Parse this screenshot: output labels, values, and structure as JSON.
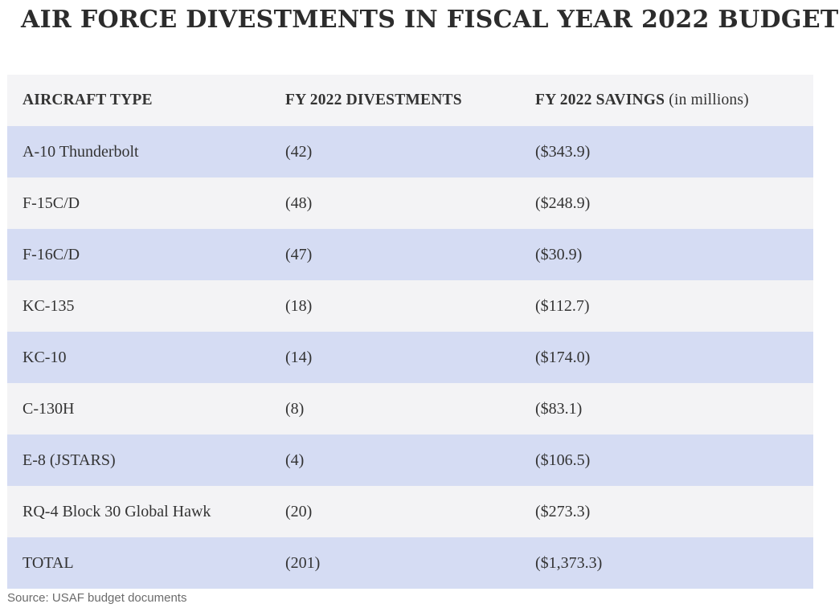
{
  "title": "AIR FORCE DIVESTMENTS IN FISCAL YEAR 2022 BUDGET",
  "table": {
    "headers": {
      "aircraft": "AIRCRAFT TYPE",
      "divestments": "FY 2022 DIVESTMENTS",
      "savings": "FY 2022 SAVINGS",
      "savings_unit": "(in millions)"
    },
    "rows": [
      {
        "aircraft": "A-10 Thunderbolt",
        "divestments": "(42)",
        "savings": "($343.9)"
      },
      {
        "aircraft": "F-15C/D",
        "divestments": "(48)",
        "savings": "($248.9)"
      },
      {
        "aircraft": "F-16C/D",
        "divestments": "(47)",
        "savings": "($30.9)"
      },
      {
        "aircraft": "KC-135",
        "divestments": "(18)",
        "savings": "($112.7)"
      },
      {
        "aircraft": "KC-10",
        "divestments": "(14)",
        "savings": "($174.0)"
      },
      {
        "aircraft": "C-130H",
        "divestments": "(8)",
        "savings": "($83.1)"
      },
      {
        "aircraft": "E-8 (JSTARS)",
        "divestments": "(4)",
        "savings": "($106.5)"
      },
      {
        "aircraft": "RQ-4 Block 30 Global Hawk",
        "divestments": "(20)",
        "savings": "($273.3)"
      },
      {
        "aircraft": "TOTAL",
        "divestments": "(201)",
        "savings": "($1,373.3)"
      }
    ]
  },
  "source": "Source: USAF budget documents",
  "colors": {
    "header_bg": "#f4f4f6",
    "row_shaded": "#d5dcf3",
    "row_plain": "#f3f3f5"
  }
}
